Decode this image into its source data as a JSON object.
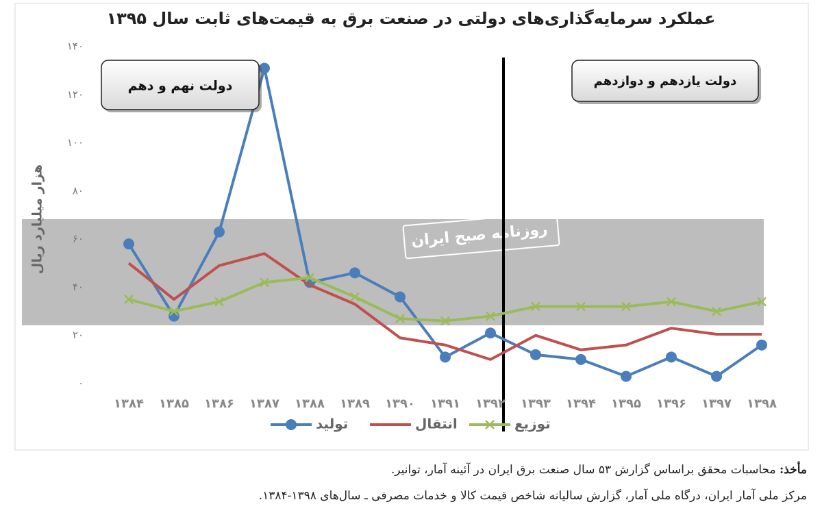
{
  "chart_data": {
    "type": "line",
    "title": "عملکرد سرمایه‌گذاری‌های دولتی در صنعت برق به قیمت‌های ثابت سال ۱۳۹۵",
    "y_label": "هزار میلیارد ریال",
    "categories": [
      "۱۳۸۴",
      "۱۳۸۵",
      "۱۳۸۶",
      "۱۳۸۷",
      "۱۳۸۸",
      "۱۳۸۹",
      "۱۳۹۰",
      "۱۳۹۱",
      "۱۳۹۲",
      "۱۳۹۳",
      "۱۳۹۴",
      "۱۳۹۵",
      "۱۳۹۶",
      "۱۳۹۷",
      "۱۳۹۸"
    ],
    "series": [
      {
        "name": "تولید",
        "color": "#4a7ebb",
        "marker": "circle",
        "values": [
          58,
          28,
          63,
          131,
          42,
          46,
          36,
          11,
          21,
          12,
          10,
          3,
          11,
          3,
          16
        ]
      },
      {
        "name": "انتقال",
        "color": "#c0504d",
        "marker": "none",
        "values": [
          50,
          35,
          49,
          54,
          41,
          33,
          19,
          16,
          10,
          20,
          14,
          16,
          23,
          20.5,
          20.5
        ]
      },
      {
        "name": "توزیع",
        "color": "#9bbb59",
        "marker": "x",
        "values": [
          35,
          30,
          34,
          42,
          44,
          36,
          27,
          26,
          28,
          32,
          32,
          32,
          34,
          30,
          34
        ]
      }
    ],
    "ylim": [
      0,
      140
    ],
    "yticks": [
      {
        "value": 0,
        "label": "۰"
      },
      {
        "value": 20,
        "label": "۲۰"
      },
      {
        "value": 40,
        "label": "۴۰"
      },
      {
        "value": 60,
        "label": "۶۰"
      },
      {
        "value": 80,
        "label": "۸۰"
      },
      {
        "value": 100,
        "label": "۱۰۰"
      },
      {
        "value": 120,
        "label": "۱۲۰"
      },
      {
        "value": 140,
        "label": "۱۴۰"
      }
    ],
    "grid": false,
    "legend": "bottom",
    "annotations": [
      "دولت نهم و دهم",
      "دولت یازدهم و دوازدهم"
    ],
    "watermark": "روزنامه صبح ایران"
  },
  "source": {
    "label": "مأخذ:",
    "line1": "محاسبات محقق براساس گزارش ۵۳ سال صنعت برق ایران در آئینه آمار، توانیر.",
    "line2": "مرکز ملی آمار ایران، درگاه ملی آمار، گزارش سالیانه شاخص قیمت کالا و خدمات مصرفی ـ سال‌های ۱۳۹۸-۱۳۸۴."
  }
}
